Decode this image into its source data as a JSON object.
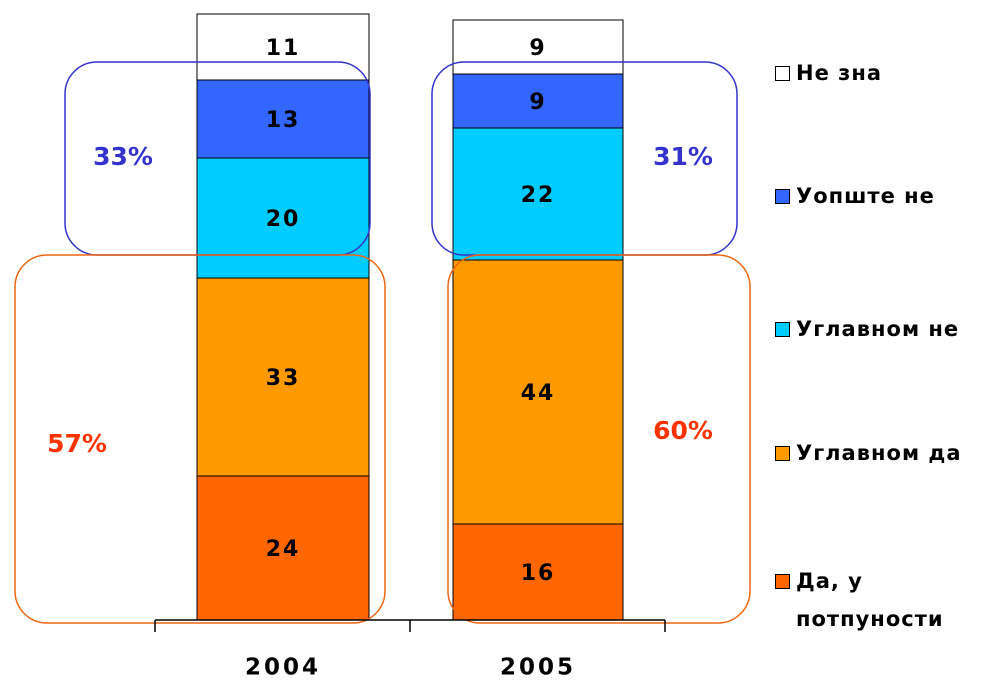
{
  "chart_data": {
    "type": "stacked_bar",
    "categories": [
      "2004",
      "2005"
    ],
    "series": [
      {
        "name": "Да, у потпуности",
        "color": "#ff6600",
        "values": [
          24,
          16
        ]
      },
      {
        "name": "Углавном да",
        "color": "#ff9900",
        "values": [
          33,
          44
        ]
      },
      {
        "name": "Углавном не",
        "color": "#00ccff",
        "values": [
          20,
          22
        ]
      },
      {
        "name": "Уопште не",
        "color": "#3366ff",
        "values": [
          13,
          9
        ]
      },
      {
        "name": "Не зна",
        "color": "#ffffff",
        "values": [
          11,
          9
        ]
      }
    ],
    "annotations": [
      "33%",
      "57%",
      "31%",
      "60%"
    ]
  }
}
